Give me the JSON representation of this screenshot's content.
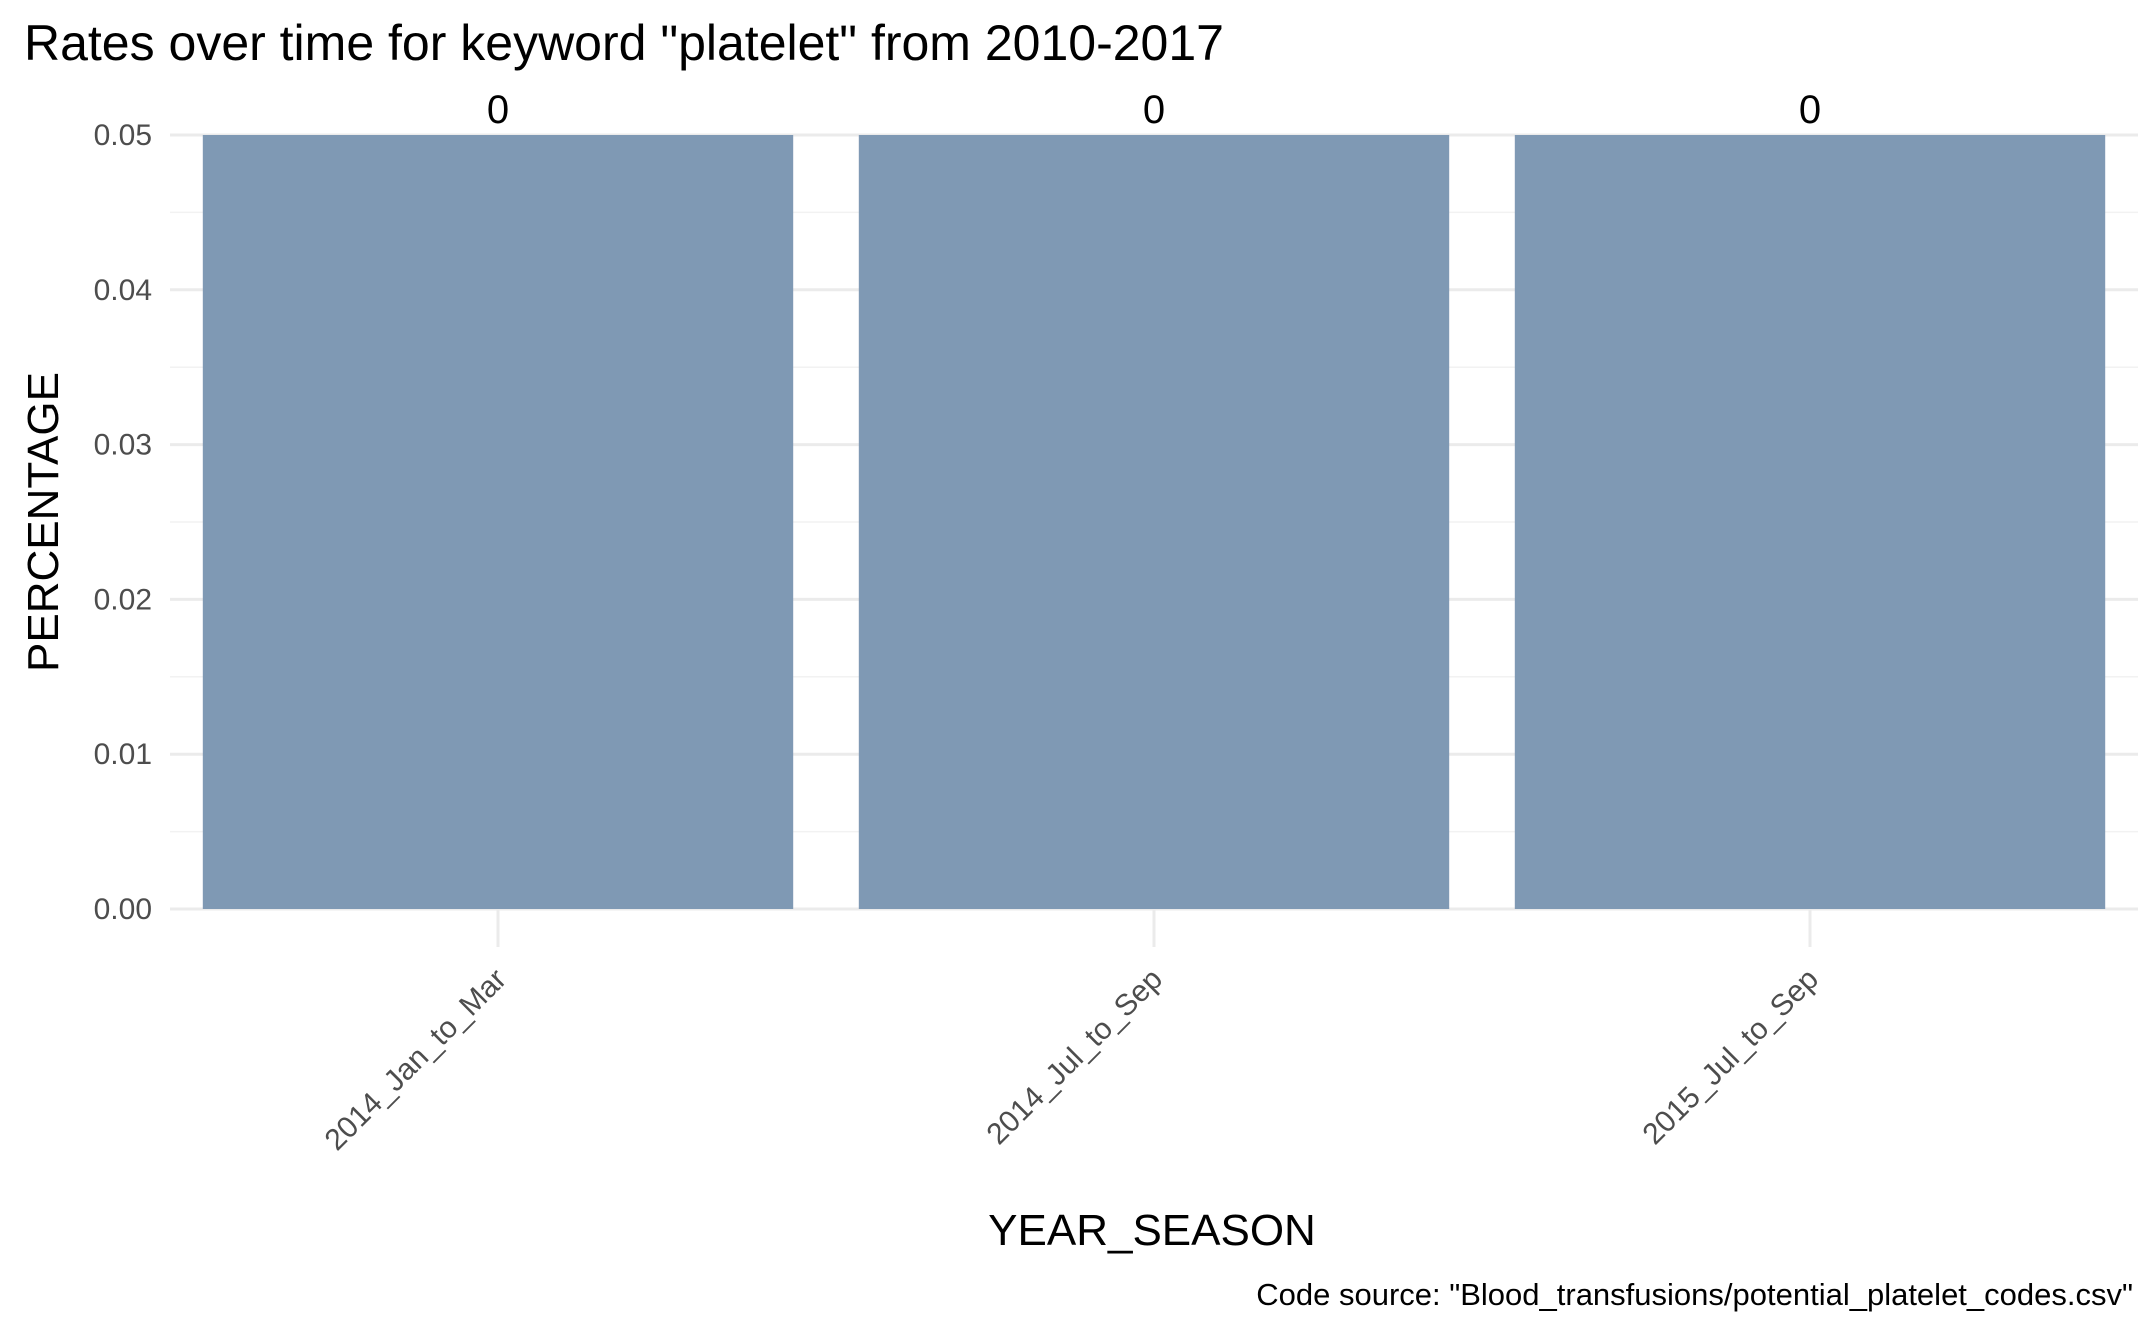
{
  "chart_data": {
    "type": "bar",
    "title": "Rates over time for keyword \"platelet\" from 2010-2017",
    "xlabel": "YEAR_SEASON",
    "ylabel": "PERCENTAGE",
    "caption": "Code source: \"Blood_transfusions/potential_platelet_codes.csv\"",
    "categories": [
      "2014_Jan_to_Mar",
      "2014_Jul_to_Sep",
      "2015_Jul_to_Sep"
    ],
    "values": [
      0.05,
      0.05,
      0.05
    ],
    "data_labels": [
      "0",
      "0",
      "0"
    ],
    "ylim": [
      0,
      0.05
    ],
    "yticks": [
      0.0,
      0.01,
      0.02,
      0.03,
      0.04,
      0.05
    ],
    "ytick_labels": [
      "0.00",
      "0.01",
      "0.02",
      "0.03",
      "0.04",
      "0.05"
    ],
    "bar_color": "#7f99b4",
    "grid": true,
    "legend": "none"
  }
}
